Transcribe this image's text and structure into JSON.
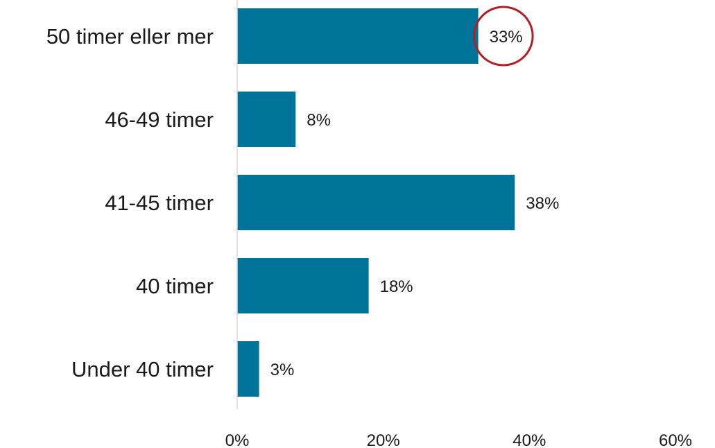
{
  "chart_data": {
    "type": "bar",
    "orientation": "horizontal",
    "categories": [
      "50 timer eller mer",
      "46-49 timer",
      "41-45 timer",
      "40 timer",
      "Under 40 timer"
    ],
    "values": [
      33,
      8,
      38,
      18,
      3
    ],
    "value_labels": [
      "33%",
      "8%",
      "38%",
      "18%",
      "3%"
    ],
    "xlim": [
      0,
      60
    ],
    "xticks": [
      0,
      20,
      40,
      60
    ],
    "xtick_labels": [
      "0%",
      "20%",
      "40%",
      "60%"
    ],
    "highlighted_category": "50 timer eller mer",
    "grid": false,
    "colors": {
      "bar": "#007399",
      "axis": "#d9d9d9",
      "highlight_ellipse": "#b21f24",
      "text": "#1a1a1a"
    }
  }
}
